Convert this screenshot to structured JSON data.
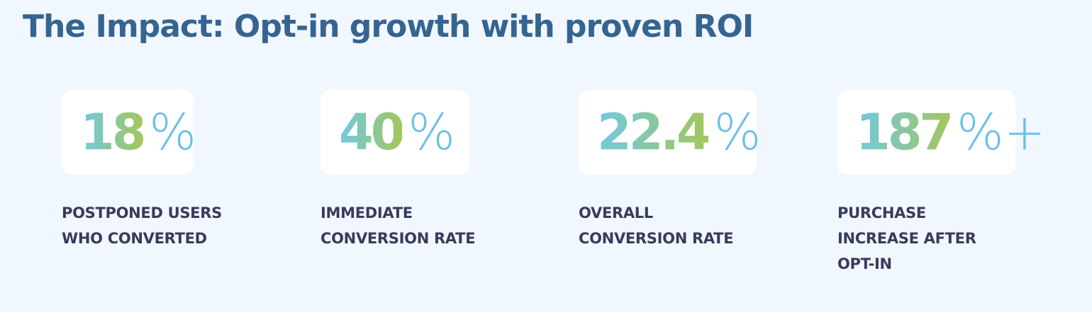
{
  "title": "The Impact: Opt-in growth with proven ROI",
  "stats": [
    {
      "value": "18",
      "suffix": "%",
      "label_lines": [
        "POSTPONED USERS",
        "WHO CONVERTED"
      ]
    },
    {
      "value": "40",
      "suffix": "%",
      "label_lines": [
        "IMMEDIATE",
        "CONVERSION RATE"
      ]
    },
    {
      "value": "22.4",
      "suffix": "%",
      "label_lines": [
        "OVERALL",
        "CONVERSION RATE"
      ]
    },
    {
      "value": "187",
      "suffix": "%+",
      "label_lines": [
        "PURCHASE",
        "INCREASE AFTER",
        "OPT-IN"
      ]
    }
  ],
  "colors": {
    "background": "#f1f7ff",
    "title": "#356491",
    "label": "#3a3a5c",
    "gradient_start": "#74c8e2",
    "gradient_mid": "#8ac79a",
    "gradient_end": "#a5c75b",
    "suffix": "#6cc0e2"
  }
}
